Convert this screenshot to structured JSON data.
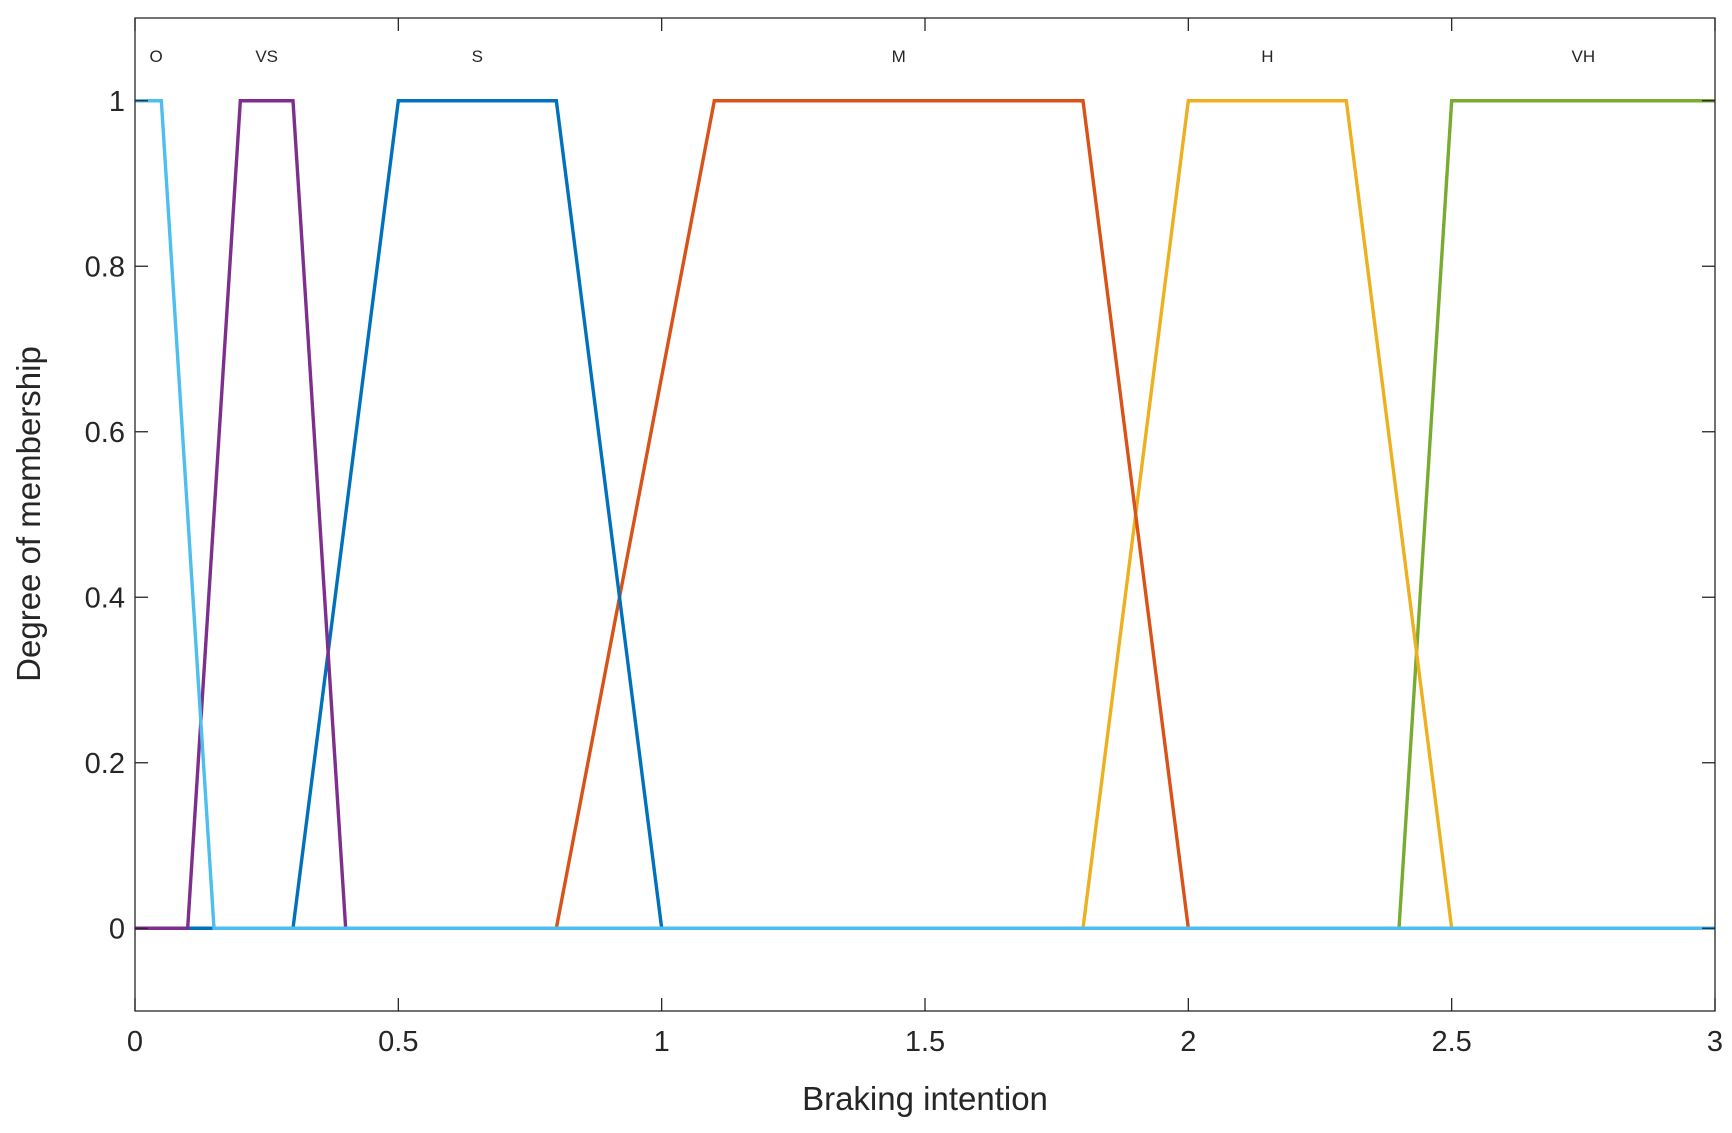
{
  "chart_data": {
    "type": "line",
    "title": "",
    "xlabel": "Braking intention",
    "ylabel": "Degree of membership",
    "xlim": [
      0,
      3
    ],
    "ylim": [
      -0.1,
      1.1
    ],
    "x_ticks": [
      0,
      0.5,
      1,
      1.5,
      2,
      2.5,
      3
    ],
    "x_tick_labels": [
      "0",
      "0.5",
      "1",
      "1.5",
      "2",
      "2.5",
      "3"
    ],
    "y_ticks": [
      0,
      0.2,
      0.4,
      0.6,
      0.8,
      1
    ],
    "y_tick_labels": [
      "0",
      "0.2",
      "0.4",
      "0.6",
      "0.8",
      "1"
    ],
    "grid": false,
    "legend": "none",
    "series": [
      {
        "name": "O",
        "color": "#4DBEEE",
        "x": [
          0,
          0.05,
          0.15,
          3
        ],
        "y": [
          1,
          1,
          0,
          0
        ],
        "label_x": 0.04
      },
      {
        "name": "VS",
        "color": "#7E2F8E",
        "x": [
          0,
          0.1,
          0.2,
          0.3,
          0.4,
          3
        ],
        "y": [
          0,
          0,
          1,
          1,
          0,
          0
        ],
        "label_x": 0.25
      },
      {
        "name": "S",
        "color": "#0072BD",
        "x": [
          0,
          0.3,
          0.5,
          0.8,
          1.0,
          3
        ],
        "y": [
          0,
          0,
          1,
          1,
          0,
          0
        ],
        "label_x": 0.65
      },
      {
        "name": "M",
        "color": "#D95319",
        "x": [
          0,
          0.8,
          1.1,
          1.8,
          2.0,
          3
        ],
        "y": [
          0,
          0,
          1,
          1,
          0,
          0
        ],
        "label_x": 1.45
      },
      {
        "name": "H",
        "color": "#EDB120",
        "x": [
          0,
          1.8,
          2.0,
          2.3,
          2.5,
          3
        ],
        "y": [
          0,
          0,
          1,
          1,
          0,
          0
        ],
        "label_x": 2.15
      },
      {
        "name": "VH",
        "color": "#77AC30",
        "x": [
          0,
          2.4,
          2.5,
          3
        ],
        "y": [
          0,
          0,
          1,
          1
        ],
        "label_x": 2.75
      }
    ],
    "draw_order": [
      "VH",
      "H",
      "M",
      "S",
      "VS",
      "O"
    ],
    "membership_label_y": 1.047
  }
}
